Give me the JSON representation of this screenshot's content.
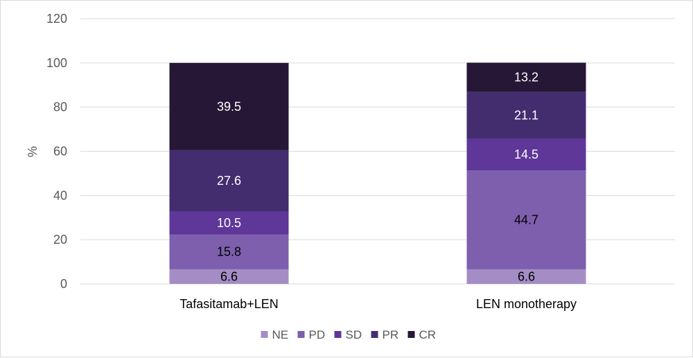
{
  "chart_data": {
    "type": "bar",
    "stacked": true,
    "ylabel": "%",
    "ylim": [
      0,
      120
    ],
    "y_ticks": [
      "0",
      "20",
      "40",
      "60",
      "80",
      "100",
      "120"
    ],
    "grid": true,
    "legend_position": "bottom",
    "categories": [
      "Tafasitamab+LEN",
      "LEN monotherapy"
    ],
    "series": [
      {
        "name": "NE",
        "color": "#a48dc4",
        "label_color": "#000000",
        "values": [
          6.6,
          6.6
        ],
        "labels": [
          "6.6",
          "6.6"
        ]
      },
      {
        "name": "PD",
        "color": "#7d5fad",
        "label_color": "#000000",
        "values": [
          15.8,
          44.7
        ],
        "labels": [
          "15.8",
          "44.7"
        ]
      },
      {
        "name": "SD",
        "color": "#5e3799",
        "label_color": "#ffffff",
        "values": [
          10.5,
          14.5
        ],
        "labels": [
          "10.5",
          "14.5"
        ]
      },
      {
        "name": "PR",
        "color": "#432d6f",
        "label_color": "#ffffff",
        "values": [
          27.6,
          21.1
        ],
        "labels": [
          "27.6",
          "21.1"
        ]
      },
      {
        "name": "CR",
        "color": "#261736",
        "label_color": "#ffffff",
        "values": [
          39.5,
          13.2
        ],
        "labels": [
          "39.5",
          "13.2"
        ]
      }
    ]
  }
}
